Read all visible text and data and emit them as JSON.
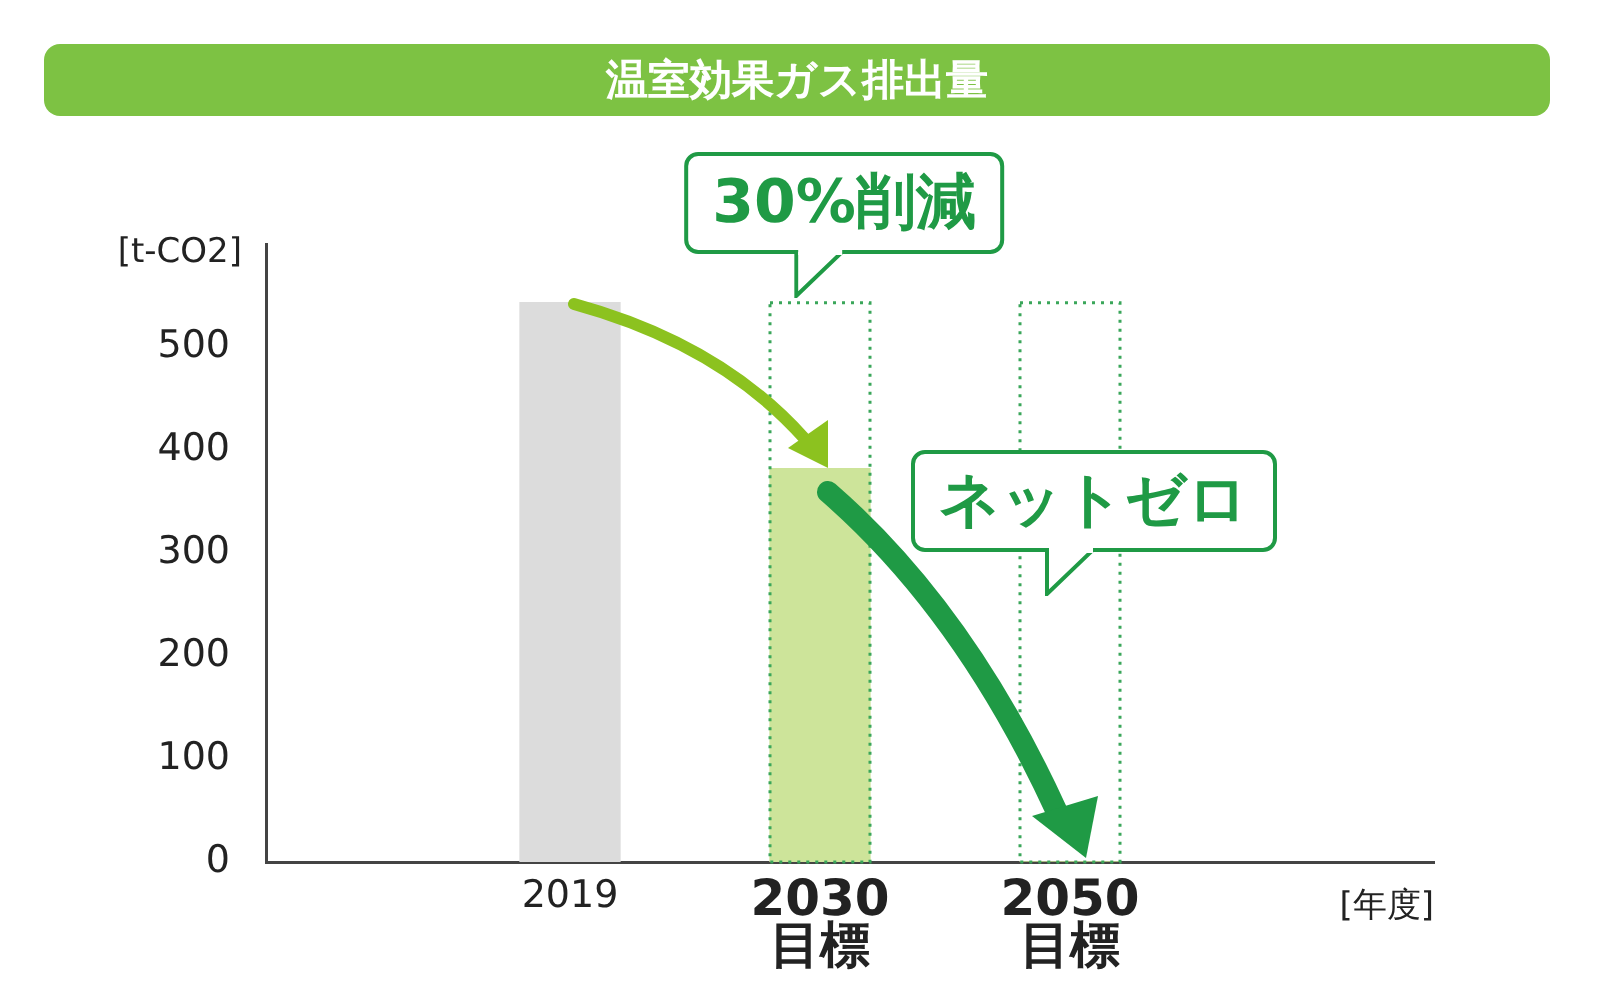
{
  "chart_data": {
    "type": "bar",
    "title": "温室効果ガス排出量",
    "ylabel": "[t-CO2]",
    "xlabel": "[年度]",
    "categories": [
      "2019",
      "2030\n目標",
      "2050\n目標"
    ],
    "series": [
      {
        "color": "#dcdcdc",
        "colors": [
          "#dcdcdc",
          "#cde49a",
          "#cde49a"
        ],
        "values": [
          543,
          382,
          0
        ]
      },
      {
        "color": "#3aa65a",
        "line_style": "dotted",
        "values": [
          null,
          543,
          543
        ]
      }
    ],
    "ylim": [
      0,
      600
    ],
    "yticks": [
      0,
      100,
      200,
      300,
      400,
      500
    ],
    "grid": false,
    "legend": false,
    "annotations": [
      {
        "text": "30%削減",
        "x": "2030\n目標",
        "y": 543
      },
      "ネットゼロ"
    ]
  }
}
